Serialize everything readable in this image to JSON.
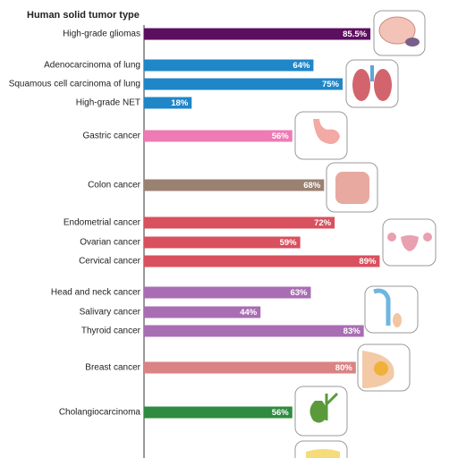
{
  "chart_data": {
    "type": "bar",
    "orientation": "horizontal",
    "title": "Human solid tumor type",
    "categories": [
      "High-grade gliomas",
      "Adenocarcinoma of lung",
      "Squamous cell carcinoma of lung",
      "High-grade NET",
      "Gastric cancer",
      "Colon cancer",
      "Endometrial cancer",
      "Ovarian cancer",
      "Cervical cancer",
      "Head and neck cancer",
      "Salivary cancer",
      "Thyroid cancer",
      "Breast cancer",
      "Cholangiocarcinoma"
    ],
    "values": [
      85.5,
      64,
      75,
      18,
      56,
      68,
      72,
      59,
      89,
      63,
      44,
      83,
      80,
      56
    ],
    "value_labels": [
      "85.5%",
      "64%",
      "75%",
      "18%",
      "56%",
      "68%",
      "72%",
      "59%",
      "89%",
      "63%",
      "44%",
      "83%",
      "80%",
      "56%"
    ],
    "colors": [
      "#5c0f5e",
      "#1f86c8",
      "#1f86c8",
      "#1f86c8",
      "#ee7bb4",
      "#9a8172",
      "#d9505e",
      "#d9505e",
      "#d9505e",
      "#a96db4",
      "#a96db4",
      "#a96db4",
      "#d98384",
      "#2e8b3f"
    ],
    "xlim": [
      0,
      100
    ]
  }
}
